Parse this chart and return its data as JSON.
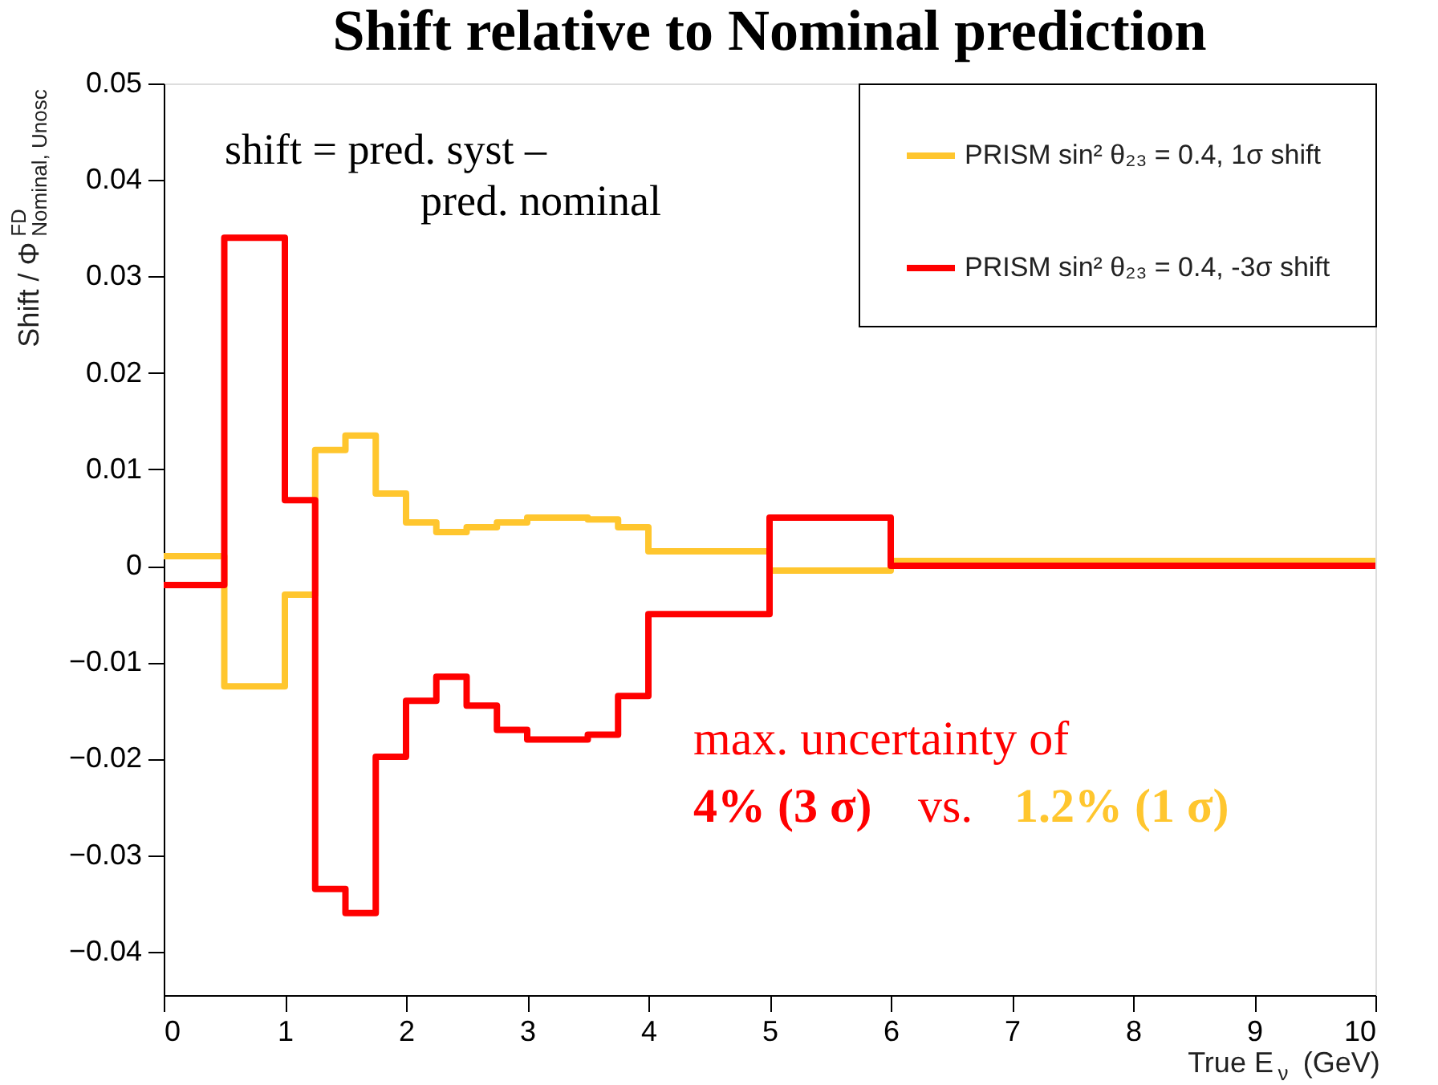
{
  "chart_data": {
    "type": "step",
    "title": "Shift relative to Nominal prediction",
    "xlabel": "True E$_{ν}$ (GeV)",
    "ylabel": "Shift / Φ$^{FD}$$_{Nominal, Unosc}$",
    "x": [
      0,
      0.5,
      1,
      1.25,
      1.5,
      1.75,
      2,
      2.25,
      2.5,
      2.75,
      3,
      3.25,
      3.5,
      3.75,
      4,
      5,
      6,
      10
    ],
    "series": [
      {
        "name": "PRISM sin² θ₂₃ = 0.4, 1σ shift",
        "color": "#ffc62e",
        "values": [
          0.001,
          -0.0125,
          -0.003,
          0.012,
          0.0135,
          0.0075,
          0.0045,
          0.0035,
          0.004,
          0.0045,
          0.005,
          0.005,
          0.0048,
          0.004,
          0.0015,
          -0.0005,
          0.0005,
          0.0005
        ]
      },
      {
        "name": "PRISM sin² θ₂₃ = 0.4, -3σ shift",
        "color": "#ff0000",
        "values": [
          -0.002,
          0.034,
          0.0068,
          -0.0335,
          -0.036,
          -0.0198,
          -0.014,
          -0.0115,
          -0.0145,
          -0.017,
          -0.018,
          -0.018,
          -0.0175,
          -0.0135,
          -0.005,
          0.005,
          0.0,
          0.0
        ]
      }
    ],
    "xlim": [
      0,
      10
    ],
    "xticks": [
      0,
      1,
      2,
      3,
      4,
      5,
      6,
      7,
      8,
      9,
      10
    ],
    "ylim": [
      -0.0445,
      0.05
    ],
    "yticks": [
      {
        "value": -0.04,
        "label": "−0.04"
      },
      {
        "value": -0.03,
        "label": "−0.03"
      },
      {
        "value": -0.02,
        "label": "−0.02"
      },
      {
        "value": -0.01,
        "label": "−0.01"
      },
      0,
      0.01,
      0.02,
      0.03,
      0.04,
      0.05
    ],
    "annotations": [
      "shift = pred. syst  –",
      "pred. nominal",
      "max. uncertainty of",
      "4% (3 σ)",
      "vs.",
      "1.2% (1 σ)"
    ],
    "legend": "top right",
    "grid": false
  }
}
